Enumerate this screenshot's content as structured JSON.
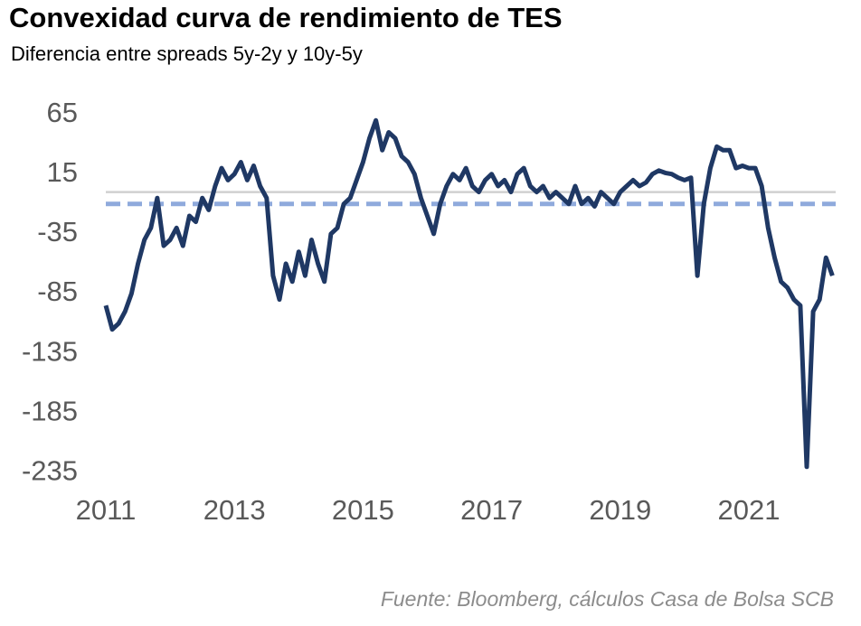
{
  "chart_data": {
    "type": "line",
    "title": "Convexidad curva de rendimiento de TES",
    "subtitle": "Diferencia entre spreads 5y-2y y 10y-5y",
    "source": "Fuente: Bloomberg, cálculos Casa de Bolsa SCB",
    "xlim": [
      2011,
      2022.35
    ],
    "xticks": [
      2011,
      2013,
      2015,
      2017,
      2019,
      2021
    ],
    "ylim": [
      -240,
      70
    ],
    "yticks": [
      65,
      15,
      -35,
      -85,
      -135,
      -185,
      -235
    ],
    "hlines": [
      {
        "value": 0,
        "color": "#d0d0d0",
        "dashed": false
      },
      {
        "value": -10,
        "color": "#8faadc",
        "dashed": true
      }
    ],
    "x": [
      2011.0,
      2011.1,
      2011.2,
      2011.3,
      2011.4,
      2011.5,
      2011.6,
      2011.7,
      2011.8,
      2011.9,
      2012.0,
      2012.1,
      2012.2,
      2012.3,
      2012.4,
      2012.5,
      2012.6,
      2012.7,
      2012.8,
      2012.9,
      2013.0,
      2013.1,
      2013.2,
      2013.3,
      2013.4,
      2013.5,
      2013.6,
      2013.7,
      2013.8,
      2013.9,
      2014.0,
      2014.1,
      2014.2,
      2014.3,
      2014.4,
      2014.5,
      2014.6,
      2014.7,
      2014.8,
      2014.9,
      2015.0,
      2015.1,
      2015.2,
      2015.3,
      2015.4,
      2015.5,
      2015.6,
      2015.7,
      2015.8,
      2015.9,
      2016.0,
      2016.1,
      2016.2,
      2016.3,
      2016.4,
      2016.5,
      2016.6,
      2016.7,
      2016.8,
      2016.9,
      2017.0,
      2017.1,
      2017.2,
      2017.3,
      2017.4,
      2017.5,
      2017.6,
      2017.7,
      2017.8,
      2017.9,
      2018.0,
      2018.1,
      2018.2,
      2018.3,
      2018.4,
      2018.5,
      2018.6,
      2018.7,
      2018.8,
      2018.9,
      2019.0,
      2019.1,
      2019.2,
      2019.3,
      2019.4,
      2019.5,
      2019.6,
      2019.7,
      2019.8,
      2019.9,
      2020.0,
      2020.1,
      2020.2,
      2020.3,
      2020.4,
      2020.5,
      2020.6,
      2020.7,
      2020.8,
      2020.9,
      2021.0,
      2021.1,
      2021.2,
      2021.3,
      2021.4,
      2021.5,
      2021.6,
      2021.7,
      2021.8,
      2021.9,
      2022.0,
      2022.1,
      2022.2,
      2022.3
    ],
    "series": [
      {
        "name": "Convexidad",
        "color": "#1f3864",
        "values": [
          -95,
          -115,
          -110,
          -100,
          -85,
          -60,
          -40,
          -30,
          -5,
          -45,
          -40,
          -30,
          -45,
          -20,
          -25,
          -5,
          -15,
          5,
          20,
          10,
          15,
          25,
          10,
          22,
          5,
          -5,
          -70,
          -90,
          -60,
          -75,
          -50,
          -70,
          -40,
          -60,
          -75,
          -35,
          -30,
          -10,
          -5,
          10,
          25,
          45,
          60,
          35,
          50,
          45,
          30,
          25,
          15,
          -5,
          -20,
          -35,
          -10,
          5,
          15,
          10,
          20,
          5,
          0,
          10,
          15,
          5,
          10,
          0,
          15,
          20,
          5,
          0,
          5,
          -5,
          0,
          -5,
          -10,
          5,
          -10,
          -5,
          -12,
          0,
          -5,
          -10,
          0,
          5,
          10,
          5,
          8,
          15,
          18,
          16,
          15,
          12,
          10,
          12,
          -70,
          -10,
          20,
          38,
          35,
          35,
          20,
          22,
          20,
          20,
          5,
          -30,
          -55,
          -75,
          -80,
          -90,
          -95,
          -230,
          -100,
          -90,
          -55,
          -70
        ]
      }
    ]
  }
}
